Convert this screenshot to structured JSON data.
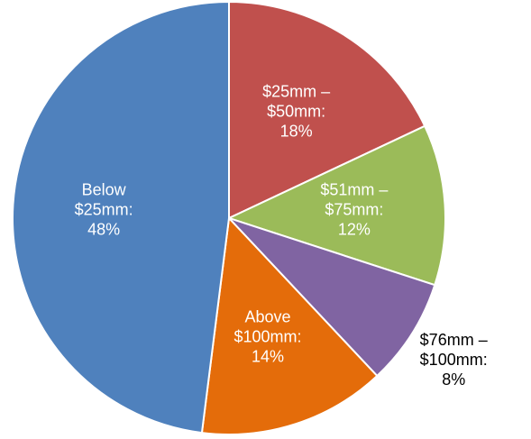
{
  "chart_data": {
    "type": "pie",
    "title": "",
    "slices": [
      {
        "label_lines": [
          "$25mm –",
          "$50mm:",
          "18%"
        ],
        "value": 18,
        "color": "#C0504D",
        "label_color": "#ffffff"
      },
      {
        "label_lines": [
          "$51mm –",
          "$75mm:",
          "12%"
        ],
        "value": 12,
        "color": "#9BBB59",
        "label_color": "#ffffff"
      },
      {
        "label_lines": [
          "$76mm –",
          "$100mm:",
          "8%"
        ],
        "value": 8,
        "color": "#8064A2",
        "label_color": "#000000",
        "label_outside": true
      },
      {
        "label_lines": [
          "Above",
          "$100mm:",
          "14%"
        ],
        "value": 14,
        "color": "#E46C0A",
        "label_color": "#ffffff"
      },
      {
        "label_lines": [
          "Below",
          "$25mm:",
          "48%"
        ],
        "value": 48,
        "color": "#4F81BD",
        "label_color": "#ffffff"
      }
    ],
    "start_angle_deg": 0,
    "direction": "clockwise"
  }
}
